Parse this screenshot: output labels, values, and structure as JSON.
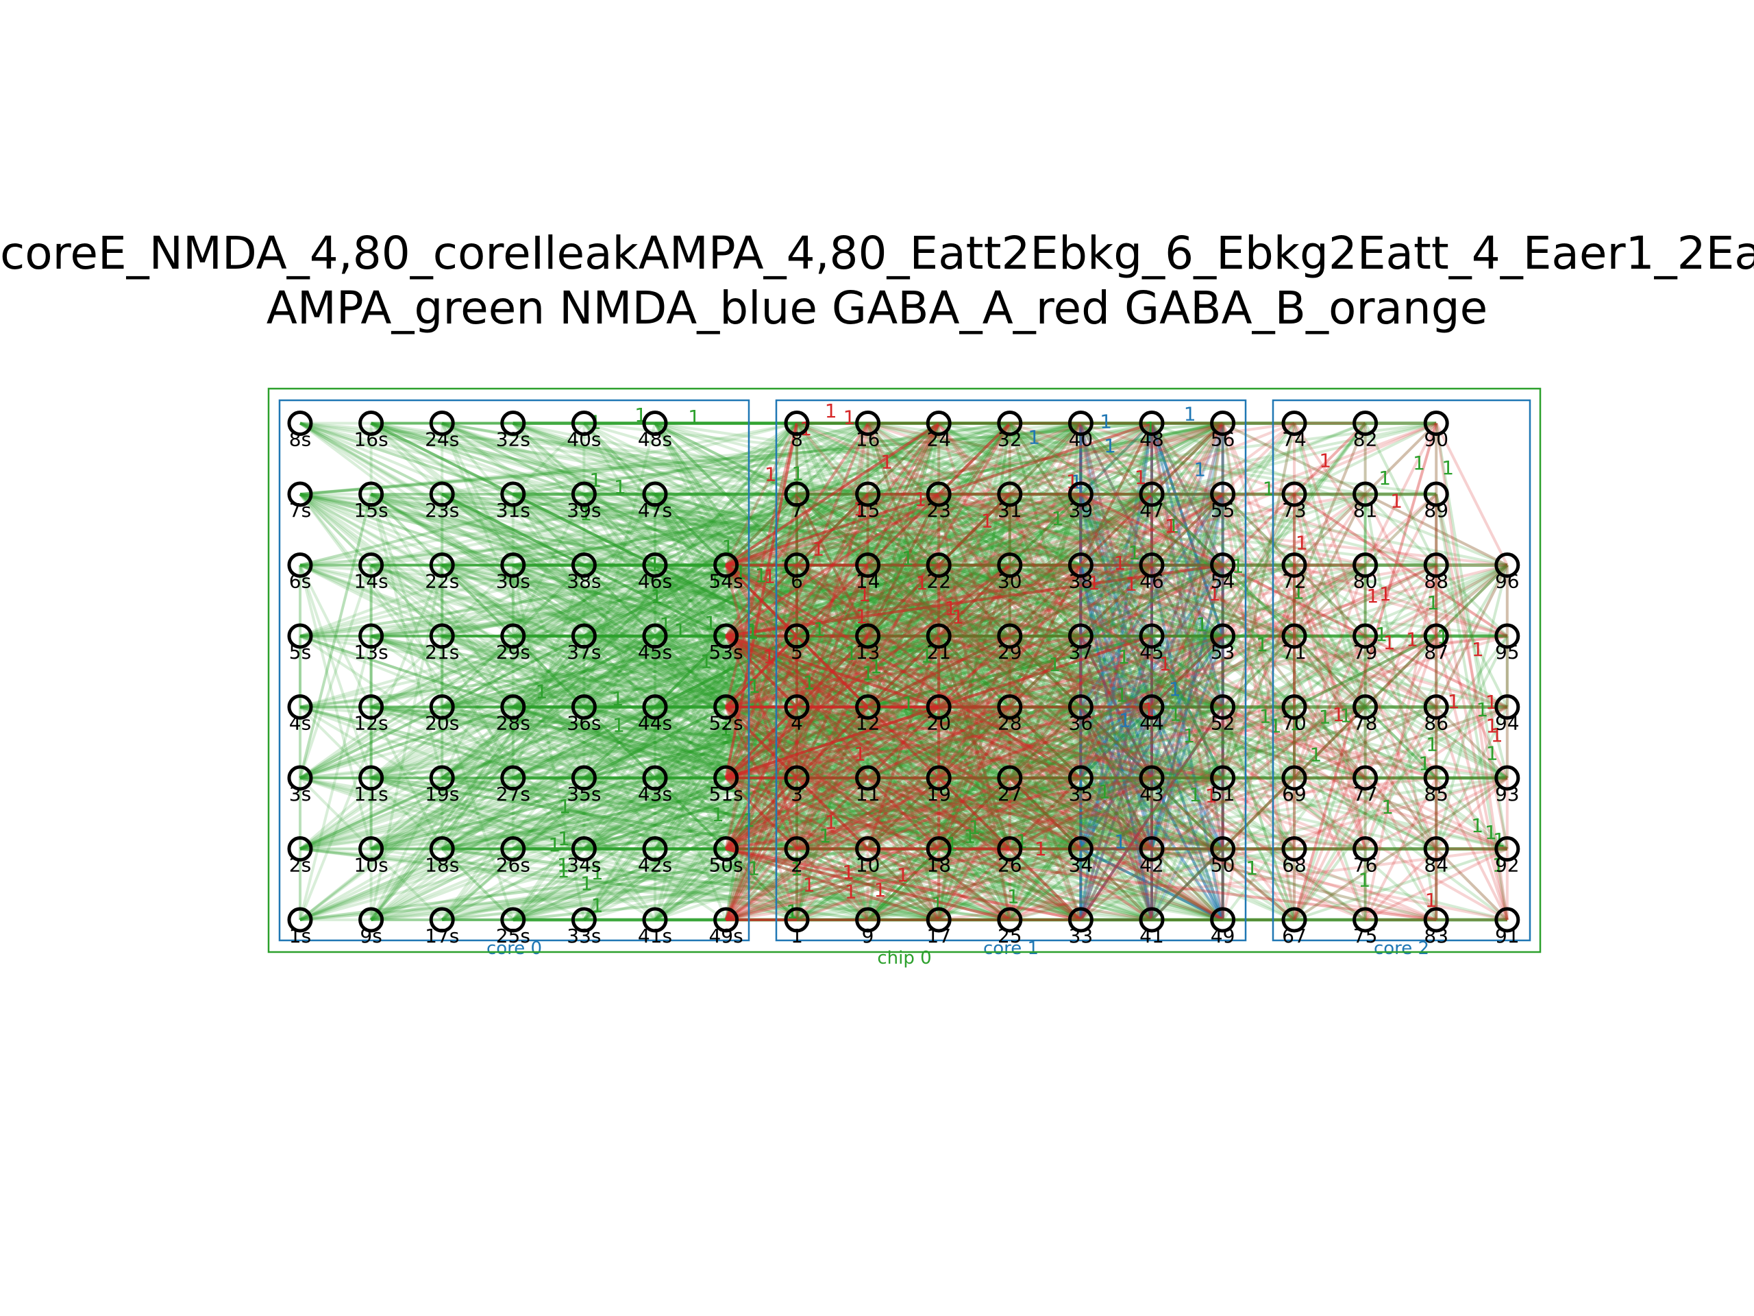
{
  "title": {
    "line1": "coreE_NMDA_4,80_coreIleakAMPA_4,80_Eatt2Ebkg_6_Ebkg2Eatt_4_Eaer1_2Ea",
    "line2": "AMPA_green NMDA_blue GABA_A_red GABA_B_orange"
  },
  "colors": {
    "AMPA": "#2ca02c",
    "NMDA": "#1f77b4",
    "GABA_A": "#d62728",
    "GABA_B": "#ff7f0e",
    "core_box": "#1f77b4",
    "chip_box": "#2ca02c",
    "node_stroke": "#000000"
  },
  "chip": {
    "label": "chip 0"
  },
  "cores": [
    {
      "label": "core 0",
      "columns": [
        [
          "1s",
          "2s",
          "3s",
          "4s",
          "5s",
          "6s",
          "7s",
          "8s"
        ],
        [
          "9s",
          "10s",
          "11s",
          "12s",
          "13s",
          "14s",
          "15s",
          "16s"
        ],
        [
          "17s",
          "18s",
          "19s",
          "20s",
          "21s",
          "22s",
          "23s",
          "24s"
        ],
        [
          "25s",
          "26s",
          "27s",
          "28s",
          "29s",
          "30s",
          "31s",
          "32s"
        ],
        [
          "33s",
          "34s",
          "35s",
          "36s",
          "37s",
          "38s",
          "39s",
          "40s"
        ],
        [
          "41s",
          "42s",
          "43s",
          "44s",
          "45s",
          "46s",
          "47s",
          "48s"
        ],
        [
          "49s",
          "50s",
          "51s",
          "52s",
          "53s",
          "54s",
          "",
          ""
        ]
      ]
    },
    {
      "label": "core 1",
      "columns": [
        [
          "1",
          "2",
          "3",
          "4",
          "5",
          "6",
          "7",
          "8"
        ],
        [
          "9",
          "10",
          "11",
          "12",
          "13",
          "14",
          "15",
          "16"
        ],
        [
          "17",
          "18",
          "19",
          "20",
          "21",
          "22",
          "23",
          "24"
        ],
        [
          "25",
          "26",
          "27",
          "28",
          "29",
          "30",
          "31",
          "32"
        ],
        [
          "33",
          "34",
          "35",
          "36",
          "37",
          "38",
          "39",
          "40"
        ],
        [
          "41",
          "42",
          "43",
          "44",
          "45",
          "46",
          "47",
          "48"
        ],
        [
          "49",
          "50",
          "51",
          "52",
          "53",
          "54",
          "55",
          "56"
        ]
      ]
    },
    {
      "label": "core 2",
      "columns": [
        [
          "67",
          "68",
          "69",
          "70",
          "71",
          "72",
          "73",
          "74"
        ],
        [
          "75",
          "76",
          "77",
          "78",
          "79",
          "80",
          "81",
          "82"
        ],
        [
          "83",
          "84",
          "85",
          "86",
          "87",
          "88",
          "89",
          "90"
        ],
        [
          "91",
          "92",
          "93",
          "94",
          "95",
          "96",
          "",
          ""
        ]
      ]
    }
  ],
  "edge_weight_label": "1"
}
